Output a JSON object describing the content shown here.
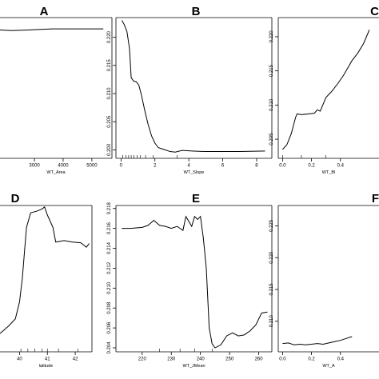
{
  "chart_data": [
    {
      "panel": "A",
      "type": "line",
      "xlabel": "WT_Area",
      "ylabel": "",
      "xlim": [
        1800,
        5700
      ],
      "ylim": [
        0.1995,
        0.2245
      ],
      "xticks": [
        3000,
        4000,
        5000
      ],
      "xtick_labels": [
        "3000",
        "4000",
        "5000"
      ],
      "yticks": [],
      "ytick_labels": [],
      "x": [
        1800,
        2200,
        2800,
        3600,
        4500,
        5400
      ],
      "y": [
        0.2223,
        0.2222,
        0.2223,
        0.2225,
        0.2225,
        0.2225
      ],
      "rug": []
    },
    {
      "panel": "B",
      "type": "line",
      "xlabel": "WT_Slope",
      "ylabel": "",
      "xlim": [
        -0.3,
        8.9
      ],
      "ylim": [
        0.1985,
        0.2235
      ],
      "xticks": [
        0,
        2,
        4,
        6,
        8
      ],
      "xtick_labels": [
        "0",
        "2",
        "4",
        "6",
        "8"
      ],
      "yticks": [
        0.2,
        0.205,
        0.21,
        0.215,
        0.22
      ],
      "ytick_labels": [
        "0.200",
        "0.205",
        "0.210",
        "0.215",
        "0.220"
      ],
      "x": [
        0.05,
        0.2,
        0.35,
        0.5,
        0.6,
        0.75,
        0.9,
        1.05,
        1.2,
        1.4,
        1.6,
        1.8,
        2.0,
        2.2,
        2.5,
        2.9,
        3.2,
        3.6,
        4.2,
        5.0,
        6.0,
        7.0,
        8.5
      ],
      "y": [
        0.223,
        0.2222,
        0.221,
        0.218,
        0.2128,
        0.2122,
        0.2121,
        0.2115,
        0.2098,
        0.207,
        0.2045,
        0.2025,
        0.2012,
        0.2004,
        0.2001,
        0.1997,
        0.1996,
        0.1999,
        0.1998,
        0.1997,
        0.1997,
        0.1997,
        0.1998
      ],
      "rug": [
        0.1,
        0.3,
        0.45,
        0.6,
        0.75,
        0.95,
        1.15,
        1.45,
        1.9,
        3.3
      ]
    },
    {
      "panel": "C",
      "type": "line",
      "xlabel": "WT_Bl",
      "ylabel": "",
      "xlim": [
        -0.03,
        0.7
      ],
      "ylim": [
        0.2022,
        0.2228
      ],
      "xticks": [
        0.0,
        0.2,
        0.4
      ],
      "xtick_labels": [
        "0.0",
        "0.2",
        "0.4"
      ],
      "yticks": [
        0.205,
        0.21,
        0.215,
        0.22
      ],
      "ytick_labels": [
        "0.205",
        "0.210",
        "0.215",
        "0.220"
      ],
      "x": [
        0.0,
        0.03,
        0.06,
        0.09,
        0.1,
        0.13,
        0.18,
        0.22,
        0.24,
        0.26,
        0.3,
        0.34,
        0.38,
        0.42,
        0.45,
        0.48,
        0.52,
        0.56,
        0.6
      ],
      "y": [
        0.2035,
        0.2042,
        0.2058,
        0.2082,
        0.2087,
        0.2086,
        0.2087,
        0.2088,
        0.2093,
        0.2091,
        0.2111,
        0.212,
        0.2131,
        0.2143,
        0.2154,
        0.2165,
        0.2176,
        0.219,
        0.221
      ],
      "rug": [
        0.0,
        0.13,
        0.3
      ]
    },
    {
      "panel": "D",
      "type": "line",
      "xlabel": "latitude",
      "ylabel": "",
      "xlim": [
        39.3,
        42.6
      ],
      "ylim": [
        0.201,
        0.221
      ],
      "xticks": [
        40,
        41,
        42
      ],
      "xtick_labels": [
        "40",
        "41",
        "42"
      ],
      "yticks": [],
      "ytick_labels": [],
      "x": [
        39.3,
        39.6,
        39.85,
        40.0,
        40.1,
        40.25,
        40.4,
        40.6,
        40.8,
        40.9,
        41.0,
        41.2,
        41.3,
        41.6,
        41.9,
        42.2,
        42.4,
        42.5
      ],
      "y": [
        0.2035,
        0.2045,
        0.2055,
        0.2078,
        0.211,
        0.218,
        0.22,
        0.2202,
        0.2205,
        0.2208,
        0.2197,
        0.218,
        0.216,
        0.2162,
        0.216,
        0.2159,
        0.2153,
        0.2158
      ],
      "rug": [
        40.05,
        40.3,
        40.55,
        40.8,
        41.0,
        41.4,
        42.1
      ]
    },
    {
      "panel": "E",
      "type": "line",
      "xlabel": "WT_JMean",
      "ylabel": "",
      "xlim": [
        211,
        264.5
      ],
      "ylim": [
        0.2036,
        0.2183
      ],
      "xticks": [
        220,
        230,
        240,
        250,
        260
      ],
      "xtick_labels": [
        "220",
        "230",
        "240",
        "250",
        "260"
      ],
      "yticks": [
        0.204,
        0.206,
        0.208,
        0.21,
        0.212,
        0.214,
        0.216,
        0.218
      ],
      "ytick_labels": [
        "0.204",
        "0.206",
        "0.208",
        "0.210",
        "0.212",
        "0.214",
        "0.216",
        "0.218"
      ],
      "x": [
        213,
        216,
        220,
        222,
        224,
        226,
        228,
        230,
        232,
        234,
        235,
        236,
        237,
        238,
        239,
        240,
        241,
        242,
        243,
        244,
        245,
        247,
        249,
        251,
        253,
        255,
        257,
        259,
        261,
        263
      ],
      "y": [
        0.216,
        0.216,
        0.2161,
        0.2163,
        0.2168,
        0.2163,
        0.2162,
        0.216,
        0.2162,
        0.2158,
        0.2172,
        0.2167,
        0.2162,
        0.2172,
        0.2169,
        0.2172,
        0.215,
        0.212,
        0.206,
        0.2044,
        0.204,
        0.2043,
        0.2052,
        0.2055,
        0.2052,
        0.2053,
        0.2057,
        0.2063,
        0.2075,
        0.2076
      ],
      "rug": [
        226,
        233,
        238,
        244
      ]
    },
    {
      "panel": "F",
      "type": "line",
      "xlabel": "WT_A",
      "ylabel": "",
      "xlim": [
        -0.03,
        0.7
      ],
      "ylim": [
        0.2052,
        0.2282
      ],
      "xticks": [
        0.0,
        0.2,
        0.4
      ],
      "xtick_labels": [
        "0.0",
        "0.2",
        "0.4"
      ],
      "yticks": [
        0.21,
        0.215,
        0.22,
        0.225
      ],
      "ytick_labels": [
        "0.210",
        "0.215",
        "0.220",
        "0.225"
      ],
      "x": [
        0.0,
        0.04,
        0.08,
        0.12,
        0.16,
        0.2,
        0.24,
        0.28,
        0.32,
        0.36,
        0.4,
        0.44,
        0.48
      ],
      "y": [
        0.2065,
        0.2066,
        0.2063,
        0.2064,
        0.2063,
        0.2064,
        0.2065,
        0.2064,
        0.2066,
        0.2068,
        0.207,
        0.2073,
        0.2076
      ],
      "rug": []
    }
  ]
}
